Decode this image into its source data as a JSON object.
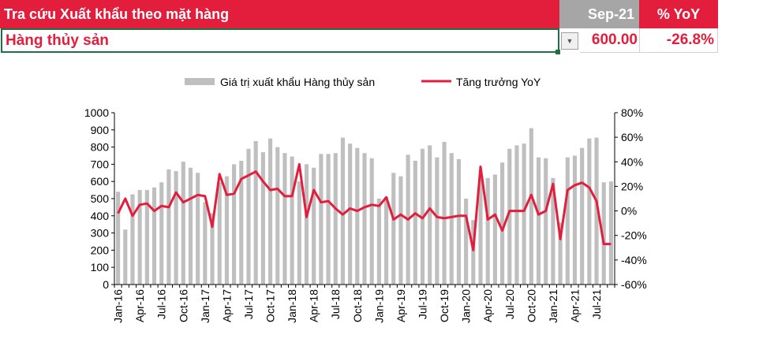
{
  "header": {
    "title": "Tra cứu Xuất khẩu theo mặt hàng",
    "period": "Sep-21",
    "yoy": "% YoY"
  },
  "selection": {
    "item": "Hàng thủy sản",
    "value": "600.00",
    "yoy": "-26.8%",
    "dropdown_icon": "chevron-down-icon"
  },
  "colors": {
    "accent": "#e31e3c",
    "bar": "#bfbfbf",
    "period_bg": "#a6a6a6",
    "selection_border": "#1e7145"
  },
  "chart_data": {
    "type": "bar",
    "legend_position": "top",
    "grid": false,
    "title": "",
    "x": [
      "Jan-16",
      "Feb-16",
      "Mar-16",
      "Apr-16",
      "May-16",
      "Jun-16",
      "Jul-16",
      "Aug-16",
      "Sep-16",
      "Oct-16",
      "Nov-16",
      "Dec-16",
      "Jan-17",
      "Feb-17",
      "Mar-17",
      "Apr-17",
      "May-17",
      "Jun-17",
      "Jul-17",
      "Aug-17",
      "Sep-17",
      "Oct-17",
      "Nov-17",
      "Dec-17",
      "Jan-18",
      "Feb-18",
      "Mar-18",
      "Apr-18",
      "May-18",
      "Jun-18",
      "Jul-18",
      "Aug-18",
      "Sep-18",
      "Oct-18",
      "Nov-18",
      "Dec-18",
      "Jan-19",
      "Feb-19",
      "Mar-19",
      "Apr-19",
      "May-19",
      "Jun-19",
      "Jul-19",
      "Aug-19",
      "Sep-19",
      "Oct-19",
      "Nov-19",
      "Dec-19",
      "Jan-20",
      "Feb-20",
      "Mar-20",
      "Apr-20",
      "May-20",
      "Jun-20",
      "Jul-20",
      "Aug-20",
      "Sep-20",
      "Oct-20",
      "Nov-20",
      "Dec-20",
      "Jan-21",
      "Feb-21",
      "Mar-21",
      "Apr-21",
      "May-21",
      "Jun-21",
      "Jul-21",
      "Aug-21",
      "Sep-21"
    ],
    "x_tick_labels": [
      "Jan-16",
      "Apr-16",
      "Jul-16",
      "Oct-16",
      "Jan-17",
      "Apr-17",
      "Jul-17",
      "Oct-17",
      "Jan-18",
      "Apr-18",
      "Jul-18",
      "Oct-18",
      "Jan-19",
      "Apr-19",
      "Jul-19",
      "Oct-19",
      "Jan-20",
      "Apr-20",
      "Jul-20",
      "Oct-20",
      "Jan-21",
      "Apr-21",
      "Jul-21"
    ],
    "y_left": {
      "min": 0,
      "max": 1000,
      "ticks": [
        "0",
        "100",
        "200",
        "300",
        "400",
        "500",
        "600",
        "700",
        "800",
        "900",
        "1000"
      ]
    },
    "y_right": {
      "min": -60,
      "max": 80,
      "ticks": [
        "-60%",
        "-40%",
        "-20%",
        "0%",
        "20%",
        "40%",
        "60%",
        "80%"
      ]
    },
    "series": [
      {
        "name": "Giá trị xuất khẩu Hàng thủy sản",
        "type": "bar",
        "axis": "left",
        "color": "#bfbfbf",
        "values": [
          540,
          320,
          525,
          550,
          550,
          565,
          595,
          670,
          660,
          715,
          680,
          650,
          480,
          415,
          595,
          630,
          700,
          720,
          790,
          835,
          770,
          850,
          800,
          765,
          745,
          600,
          700,
          680,
          760,
          760,
          765,
          855,
          820,
          795,
          765,
          735,
          500,
          510,
          650,
          630,
          755,
          720,
          790,
          810,
          740,
          830,
          765,
          730,
          500,
          375,
          630,
          620,
          640,
          710,
          790,
          810,
          820,
          910,
          740,
          735,
          620,
          360,
          740,
          750,
          795,
          850,
          855,
          595,
          600
        ]
      },
      {
        "name": "Tăng trưởng YoY",
        "type": "line",
        "axis": "right",
        "color": "#e31e3c",
        "values": [
          -2,
          10,
          -4,
          5,
          6,
          0,
          4,
          3,
          15,
          7,
          10,
          13,
          12,
          -13,
          30,
          13,
          14,
          26,
          29,
          32,
          24,
          17,
          18,
          12,
          12,
          38,
          -5,
          17,
          7,
          8,
          2,
          -3,
          2,
          0,
          3,
          5,
          4,
          11,
          -7,
          -3,
          -7,
          -2,
          -6,
          2,
          -5,
          -6,
          -5,
          -4,
          -4,
          -32,
          36,
          -7,
          -3,
          -16,
          0,
          0,
          0,
          13,
          -3,
          0,
          22,
          -23,
          17,
          21,
          23,
          19,
          8,
          -27,
          -27
        ]
      }
    ]
  }
}
